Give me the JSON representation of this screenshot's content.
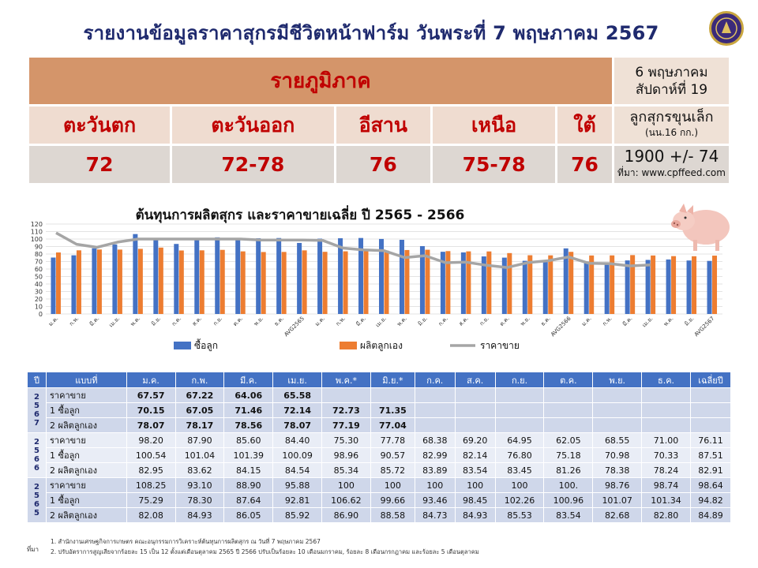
{
  "header": {
    "title": "รายงานข้อมูลราคาสุกรมีชีวิตหน้าฟาร์ม วันพระที่ 7 พฤษภาคม 2567"
  },
  "region_table": {
    "heading": "รายภูมิภาค",
    "week_date": "6 พฤษภาคม",
    "week_no": "สัปดาห์ที่ 19",
    "regions": [
      {
        "name": "ตะวันตก",
        "price": "72"
      },
      {
        "name": "ตะวันออก",
        "price": "72-78"
      },
      {
        "name": "อีสาน",
        "price": "76"
      },
      {
        "name": "เหนือ",
        "price": "75-78"
      },
      {
        "name": "ใต้",
        "price": "76"
      }
    ],
    "piglet_label": "ลูกสุกรขุนเล็ก",
    "piglet_unit": "(นน.16 กก.)",
    "piglet_price": "1900 +/- 74",
    "source_prefix": "ที่มา:",
    "source_site": "www.cpffeed.com"
  },
  "chart_data": {
    "type": "bar",
    "title": "ต้นทุนการผลิตสุกร  และราคาขายเฉลี่ย ปี 2565 - 2566",
    "categories": [
      "ม.ค.",
      "ก.พ.",
      "มี.ค.",
      "เม.ย.",
      "พ.ค.",
      "มิ.ย.",
      "ก.ค.",
      "ส.ค.",
      "ก.ย.",
      "ต.ค.",
      "พ.ย.",
      "ธ.ค.",
      "AVG2565",
      "ม.ค.",
      "ก.พ.",
      "มี.ค.",
      "เม.ย.",
      "พ.ค.",
      "มิ.ย.",
      "ก.ค.",
      "ส.ค.",
      "ก.ย.",
      "ต.ค.",
      "พ.ย.",
      "ธ.ค.",
      "AVG2566",
      "ม.ค.",
      "ก.พ.",
      "มี.ค.",
      "เม.ย.",
      "พ.ค.",
      "มิ.ย.",
      "AVG2567"
    ],
    "series": [
      {
        "name": "ซื้อลูก",
        "type": "bar",
        "color": "#4472c4",
        "values": [
          75.29,
          78.3,
          87.64,
          92.81,
          106.62,
          99.66,
          93.46,
          98.45,
          102.26,
          100.96,
          101.07,
          101.34,
          94.82,
          100.54,
          101.04,
          101.39,
          100.09,
          98.96,
          90.57,
          82.99,
          82.14,
          76.8,
          75.18,
          70.98,
          70.33,
          87.51,
          70.15,
          67.05,
          71.46,
          72.14,
          72.73,
          71.35,
          70.81
        ]
      },
      {
        "name": "ผลิตลูกเอง",
        "type": "bar",
        "color": "#ed7d31",
        "values": [
          82.08,
          84.93,
          86.05,
          85.92,
          86.9,
          88.58,
          84.73,
          84.93,
          85.53,
          83.54,
          82.68,
          82.8,
          84.89,
          82.95,
          83.62,
          84.15,
          84.54,
          85.34,
          85.72,
          83.89,
          83.54,
          83.45,
          81.26,
          78.38,
          78.24,
          82.91,
          78.07,
          78.17,
          78.56,
          78.07,
          77.19,
          77.04,
          77.85
        ]
      },
      {
        "name": "ราคาขาย",
        "type": "line",
        "color": "#a5a5a5",
        "values": [
          108.25,
          93.1,
          88.9,
          95.88,
          100,
          100,
          100,
          100,
          100,
          100,
          98.76,
          98.74,
          98.64,
          98.2,
          87.9,
          85.6,
          84.4,
          75.3,
          77.78,
          68.38,
          69.2,
          64.95,
          62.05,
          68.55,
          71.0,
          76.11,
          67.57,
          67.22,
          64.06,
          65.58,
          null,
          null,
          null
        ]
      }
    ],
    "yticks": [
      0,
      10,
      20,
      30,
      40,
      50,
      60,
      70,
      80,
      90,
      100,
      110,
      120
    ],
    "ylim": [
      0,
      120
    ],
    "legend_position": "bottom"
  },
  "data_table": {
    "headers": [
      "ปี",
      "แบบที่",
      "ม.ค.",
      "ก.พ.",
      "มี.ค.",
      "เม.ย.",
      "พ.ค.*",
      "มิ.ย.*",
      "ก.ค.",
      "ส.ค.",
      "ก.ย.",
      "ต.ค.",
      "พ.ย.",
      "ธ.ค.",
      "เฉลี่ยปี"
    ],
    "groups": [
      {
        "year": [
          "2",
          "5",
          "6",
          "7"
        ],
        "rows": [
          {
            "label": "ราคาขาย",
            "cells": [
              "67.57",
              "67.22",
              "64.06",
              "65.58",
              "",
              "",
              "",
              "",
              "",
              "",
              "",
              "",
              ""
            ]
          },
          {
            "label": "1 ซื้อลูก",
            "cells": [
              "70.15",
              "67.05",
              "71.46",
              "72.14",
              "72.73",
              "71.35",
              "",
              "",
              "",
              "",
              "",
              "",
              ""
            ]
          },
          {
            "label": "2 ผลิตลูกเอง",
            "cells": [
              "78.07",
              "78.17",
              "78.56",
              "78.07",
              "77.19",
              "77.04",
              "",
              "",
              "",
              "",
              "",
              "",
              ""
            ]
          }
        ]
      },
      {
        "year": [
          "2",
          "5",
          "6",
          "6"
        ],
        "rows": [
          {
            "label": "ราคาขาย",
            "cells": [
              "98.20",
              "87.90",
              "85.60",
              "84.40",
              "75.30",
              "77.78",
              "68.38",
              "69.20",
              "64.95",
              "62.05",
              "68.55",
              "71.00",
              "76.11"
            ]
          },
          {
            "label": "1 ซื้อลูก",
            "cells": [
              "100.54",
              "101.04",
              "101.39",
              "100.09",
              "98.96",
              "90.57",
              "82.99",
              "82.14",
              "76.80",
              "75.18",
              "70.98",
              "70.33",
              "87.51"
            ]
          },
          {
            "label": "2 ผลิตลูกเอง",
            "cells": [
              "82.95",
              "83.62",
              "84.15",
              "84.54",
              "85.34",
              "85.72",
              "83.89",
              "83.54",
              "83.45",
              "81.26",
              "78.38",
              "78.24",
              "82.91"
            ]
          }
        ]
      },
      {
        "year": [
          "2",
          "5",
          "6",
          "5"
        ],
        "rows": [
          {
            "label": "ราคาขาย",
            "cells": [
              "108.25",
              "93.10",
              "88.90",
              "95.88",
              "100",
              "100",
              "100",
              "100",
              "100",
              "100.",
              "98.76",
              "98.74",
              "98.64"
            ]
          },
          {
            "label": "1 ซื้อลูก",
            "cells": [
              "75.29",
              "78.30",
              "87.64",
              "92.81",
              "106.62",
              "99.66",
              "93.46",
              "98.45",
              "102.26",
              "100.96",
              "101.07",
              "101.34",
              "94.82"
            ]
          },
          {
            "label": "2 ผลิตลูกเอง",
            "cells": [
              "82.08",
              "84.93",
              "86.05",
              "85.92",
              "86.90",
              "88.58",
              "84.73",
              "84.93",
              "85.53",
              "83.54",
              "82.68",
              "82.80",
              "84.89"
            ]
          }
        ]
      }
    ]
  },
  "footnotes": {
    "label": "ที่มา",
    "line1": "1. สำนักงานเศรษฐกิจการเกษตร คณะอนุกรรมการวิเคราะห์ต้นทุนการผลิตสุกร  ณ วันที่ 7 พฤษภาคม 2567",
    "line2": "2. ปรับอัตราการสูญเสียจากร้อยละ 15 เป็น 12 ตั้งแต่เดือนตุลาคม 2565 ปี 2566 ปรับเป็นร้อยละ 10 เดือนมกราคม, ร้อยละ 8 เดือนกรกฎาคม และร้อยละ 5 เดือนตุลาคม"
  }
}
